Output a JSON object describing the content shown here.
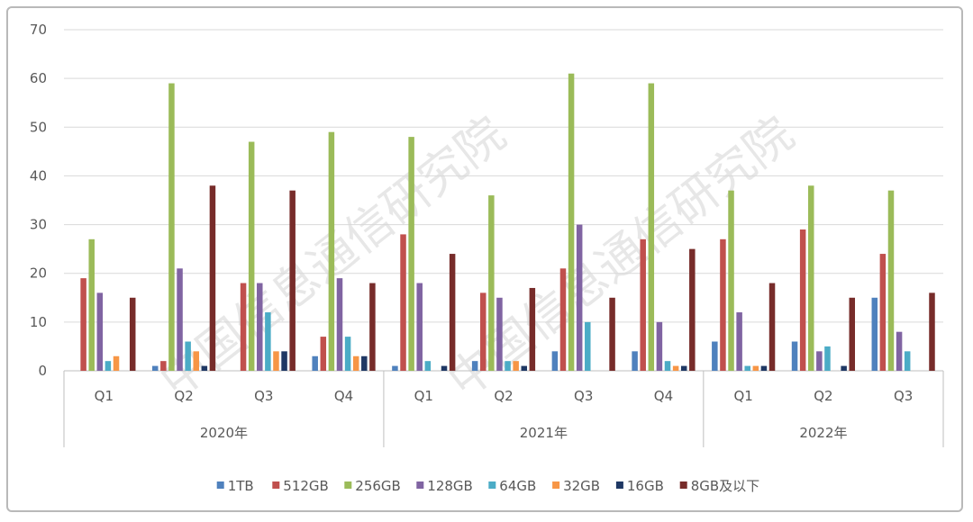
{
  "chart_data": {
    "type": "bar",
    "years": [
      {
        "label": "2020年",
        "quarters": [
          "Q1",
          "Q2",
          "Q3",
          "Q4"
        ]
      },
      {
        "label": "2021年",
        "quarters": [
          "Q1",
          "Q2",
          "Q3",
          "Q4"
        ]
      },
      {
        "label": "2022年",
        "quarters": [
          "Q1",
          "Q2",
          "Q3"
        ]
      }
    ],
    "ylim": [
      0,
      70
    ],
    "yticks": [
      0,
      10,
      20,
      30,
      40,
      50,
      60,
      70
    ],
    "grid": true,
    "legend_position": "bottom",
    "series": [
      {
        "name": "1TB",
        "color": "#4f81bd",
        "values": [
          0,
          1,
          0,
          3,
          1,
          2,
          4,
          4,
          6,
          6,
          15
        ]
      },
      {
        "name": "512GB",
        "color": "#c0504d",
        "values": [
          19,
          2,
          18,
          7,
          28,
          16,
          21,
          27,
          27,
          29,
          24
        ]
      },
      {
        "name": "256GB",
        "color": "#9bbb59",
        "values": [
          27,
          59,
          47,
          49,
          48,
          36,
          61,
          59,
          37,
          38,
          37
        ]
      },
      {
        "name": "128GB",
        "color": "#8064a2",
        "values": [
          16,
          21,
          18,
          19,
          18,
          15,
          30,
          10,
          12,
          4,
          8
        ]
      },
      {
        "name": "64GB",
        "color": "#4bacc6",
        "values": [
          2,
          6,
          12,
          7,
          2,
          2,
          10,
          2,
          1,
          5,
          4
        ]
      },
      {
        "name": "32GB",
        "color": "#f79646",
        "values": [
          3,
          4,
          4,
          3,
          0,
          2,
          0,
          1,
          1,
          0,
          0
        ]
      },
      {
        "name": "16GB",
        "color": "#1f3864",
        "values": [
          0,
          1,
          4,
          3,
          1,
          1,
          0,
          1,
          1,
          1,
          0
        ]
      },
      {
        "name": "8GB及以下",
        "color": "#772c2a",
        "values": [
          15,
          38,
          37,
          18,
          24,
          17,
          15,
          25,
          18,
          15,
          16
        ]
      }
    ]
  },
  "watermark": [
    "中国信息通信研究院",
    "中国信息通信研究院"
  ]
}
